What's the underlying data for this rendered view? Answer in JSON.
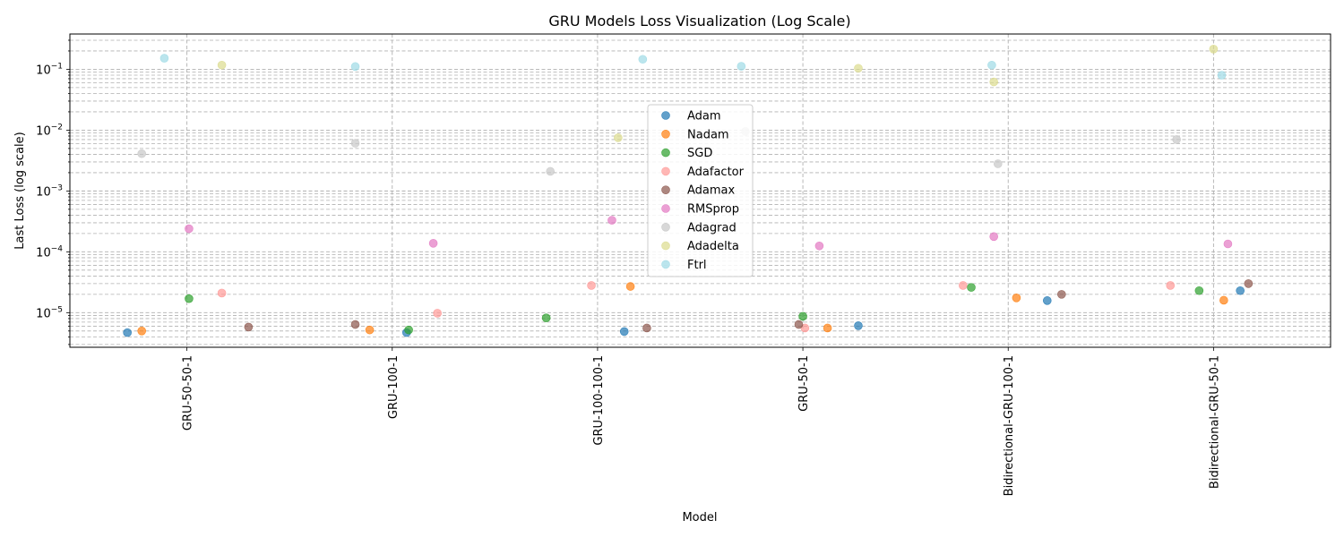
{
  "chart_data": {
    "type": "scatter",
    "title": "GRU Models Loss Visualization (Log Scale)",
    "xlabel": "Model",
    "ylabel": "Last Loss (log scale)",
    "yscale": "log",
    "ylim": [
      2.7e-06,
      0.38
    ],
    "grid": true,
    "legend_position": "center",
    "categories": [
      "GRU-50-50-1",
      "GRU-100-1",
      "GRU-100-100-1",
      "GRU-50-1",
      "Bidirectional-GRU-100-1",
      "Bidirectional-GRU-50-1"
    ],
    "y_tick_labels": [
      "10^-5",
      "10^-4",
      "10^-3",
      "10^-2",
      "10^-1"
    ],
    "series": [
      {
        "name": "Adam",
        "color": "#1f77b4",
        "points": [
          {
            "x": -0.29,
            "y": 4.7e-06
          },
          {
            "x": 1.07,
            "y": 4.7e-06
          },
          {
            "x": 2.13,
            "y": 4.9e-06
          },
          {
            "x": 3.27,
            "y": 6.1e-06
          },
          {
            "x": 4.19,
            "y": 1.58e-05
          },
          {
            "x": 5.13,
            "y": 2.3e-05
          }
        ]
      },
      {
        "name": "Nadam",
        "color": "#ff7f0e",
        "points": [
          {
            "x": -0.22,
            "y": 5e-06
          },
          {
            "x": 0.89,
            "y": 5.2e-06
          },
          {
            "x": 2.16,
            "y": 2.7e-05
          },
          {
            "x": 3.12,
            "y": 5.6e-06
          },
          {
            "x": 4.04,
            "y": 1.75e-05
          },
          {
            "x": 5.05,
            "y": 1.6e-05
          }
        ]
      },
      {
        "name": "SGD",
        "color": "#2ca02c",
        "points": [
          {
            "x": 0.01,
            "y": 1.7e-05
          },
          {
            "x": 1.08,
            "y": 5.2e-06
          },
          {
            "x": 1.75,
            "y": 8.2e-06
          },
          {
            "x": 3.0,
            "y": 8.7e-06
          },
          {
            "x": 3.82,
            "y": 2.6e-05
          },
          {
            "x": 4.93,
            "y": 2.3e-05
          }
        ]
      },
      {
        "name": "Adafactor",
        "color": "#ff9896",
        "points": [
          {
            "x": 0.17,
            "y": 2.1e-05
          },
          {
            "x": 1.22,
            "y": 9.8e-06
          },
          {
            "x": 1.97,
            "y": 2.8e-05
          },
          {
            "x": 3.01,
            "y": 5.6e-06
          },
          {
            "x": 3.78,
            "y": 2.8e-05
          },
          {
            "x": 4.79,
            "y": 2.8e-05
          }
        ]
      },
      {
        "name": "Adamax",
        "color": "#8c564b",
        "points": [
          {
            "x": 0.3,
            "y": 5.8e-06
          },
          {
            "x": 0.82,
            "y": 6.4e-06
          },
          {
            "x": 2.24,
            "y": 5.6e-06
          },
          {
            "x": 2.98,
            "y": 6.4e-06
          },
          {
            "x": 4.26,
            "y": 2e-05
          },
          {
            "x": 5.17,
            "y": 3e-05
          }
        ]
      },
      {
        "name": "RMSprop",
        "color": "#e377c2",
        "points": [
          {
            "x": 0.01,
            "y": 0.00024
          },
          {
            "x": 1.2,
            "y": 0.000138
          },
          {
            "x": 2.07,
            "y": 0.00033
          },
          {
            "x": 3.08,
            "y": 0.000125
          },
          {
            "x": 3.93,
            "y": 0.000178
          },
          {
            "x": 5.07,
            "y": 0.000135
          }
        ]
      },
      {
        "name": "Adagrad",
        "color": "#c7c7c7",
        "points": [
          {
            "x": -0.22,
            "y": 0.0041
          },
          {
            "x": 0.82,
            "y": 0.0061
          },
          {
            "x": 1.77,
            "y": 0.0021
          },
          {
            "x": 2.72,
            "y": 0.0095
          },
          {
            "x": 3.95,
            "y": 0.0028
          },
          {
            "x": 4.82,
            "y": 0.007
          }
        ]
      },
      {
        "name": "Adadelta",
        "color": "#dbdb8d",
        "points": [
          {
            "x": 0.17,
            "y": 0.117
          },
          {
            "x": 2.1,
            "y": 0.0075
          },
          {
            "x": 3.27,
            "y": 0.104
          },
          {
            "x": 3.93,
            "y": 0.062
          },
          {
            "x": 5.0,
            "y": 0.215
          }
        ]
      },
      {
        "name": "Ftrl",
        "color": "#9edae5",
        "points": [
          {
            "x": -0.11,
            "y": 0.152
          },
          {
            "x": 0.82,
            "y": 0.111
          },
          {
            "x": 2.22,
            "y": 0.146
          },
          {
            "x": 2.7,
            "y": 0.112
          },
          {
            "x": 3.92,
            "y": 0.117
          },
          {
            "x": 5.04,
            "y": 0.08
          }
        ]
      }
    ]
  }
}
